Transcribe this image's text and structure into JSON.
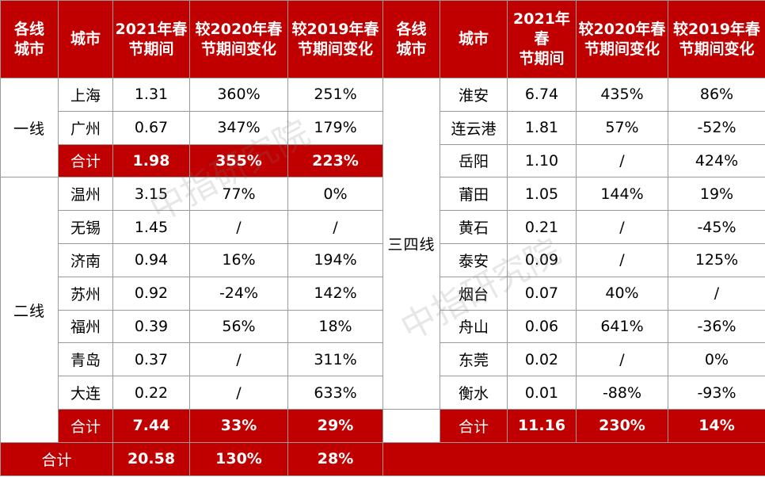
{
  "header": {
    "col_tier": [
      "各线",
      "城市"
    ],
    "col_city": "城市",
    "col_2021": [
      "2021年春",
      "节期间"
    ],
    "col_vs2020": [
      "较2020年春",
      "节期间变化"
    ],
    "col_vs2019": [
      "较2019年春",
      "节期间变化"
    ]
  },
  "left": {
    "tier1": {
      "label": "一线",
      "rows": [
        {
          "city": "上海",
          "v2021": "1.31",
          "vs2020": "360%",
          "vs2019": "251%"
        },
        {
          "city": "广州",
          "v2021": "0.67",
          "vs2020": "347%",
          "vs2019": "179%"
        }
      ],
      "total": {
        "city": "合计",
        "v2021": "1.98",
        "vs2020": "355%",
        "vs2019": "223%"
      }
    },
    "tier2": {
      "label": "二线",
      "rows": [
        {
          "city": "温州",
          "v2021": "3.15",
          "vs2020": "77%",
          "vs2019": "0%"
        },
        {
          "city": "无锡",
          "v2021": "1.45",
          "vs2020": "/",
          "vs2019": "/"
        },
        {
          "city": "济南",
          "v2021": "0.94",
          "vs2020": "16%",
          "vs2019": "194%"
        },
        {
          "city": "苏州",
          "v2021": "0.92",
          "vs2020": "-24%",
          "vs2019": "142%"
        },
        {
          "city": "福州",
          "v2021": "0.39",
          "vs2020": "56%",
          "vs2019": "18%"
        },
        {
          "city": "青岛",
          "v2021": "0.37",
          "vs2020": "/",
          "vs2019": "311%"
        },
        {
          "city": "大连",
          "v2021": "0.22",
          "vs2020": "/",
          "vs2019": "633%"
        }
      ],
      "total": {
        "city": "合计",
        "v2021": "7.44",
        "vs2020": "33%",
        "vs2019": "29%"
      }
    },
    "grand_total": {
      "label": "合计",
      "v2021": "20.58",
      "vs2020": "130%",
      "vs2019": "28%"
    }
  },
  "right": {
    "tier34": {
      "label": "三四线",
      "rows": [
        {
          "city": "淮安",
          "v2021": "6.74",
          "vs2020": "435%",
          "vs2019": "86%"
        },
        {
          "city": "连云港",
          "v2021": "1.81",
          "vs2020": "57%",
          "vs2019": "-52%"
        },
        {
          "city": "岳阳",
          "v2021": "1.10",
          "vs2020": "/",
          "vs2019": "424%"
        },
        {
          "city": "莆田",
          "v2021": "1.05",
          "vs2020": "144%",
          "vs2019": "19%"
        },
        {
          "city": "黄石",
          "v2021": "0.21",
          "vs2020": "/",
          "vs2019": "-45%"
        },
        {
          "city": "泰安",
          "v2021": "0.09",
          "vs2020": "/",
          "vs2019": "125%"
        },
        {
          "city": "烟台",
          "v2021": "0.07",
          "vs2020": "40%",
          "vs2019": "/"
        },
        {
          "city": "舟山",
          "v2021": "0.06",
          "vs2020": "641%",
          "vs2019": "-36%"
        },
        {
          "city": "东莞",
          "v2021": "0.02",
          "vs2020": "/",
          "vs2019": "0%"
        },
        {
          "city": "衡水",
          "v2021": "0.01",
          "vs2020": "-88%",
          "vs2019": "-93%"
        }
      ],
      "total": {
        "city": "合计",
        "v2021": "11.16",
        "vs2020": "230%",
        "vs2019": "14%"
      }
    }
  },
  "watermark": "中指研究院",
  "colors": {
    "accent": "#c00000",
    "border": "#9a9a9a"
  }
}
